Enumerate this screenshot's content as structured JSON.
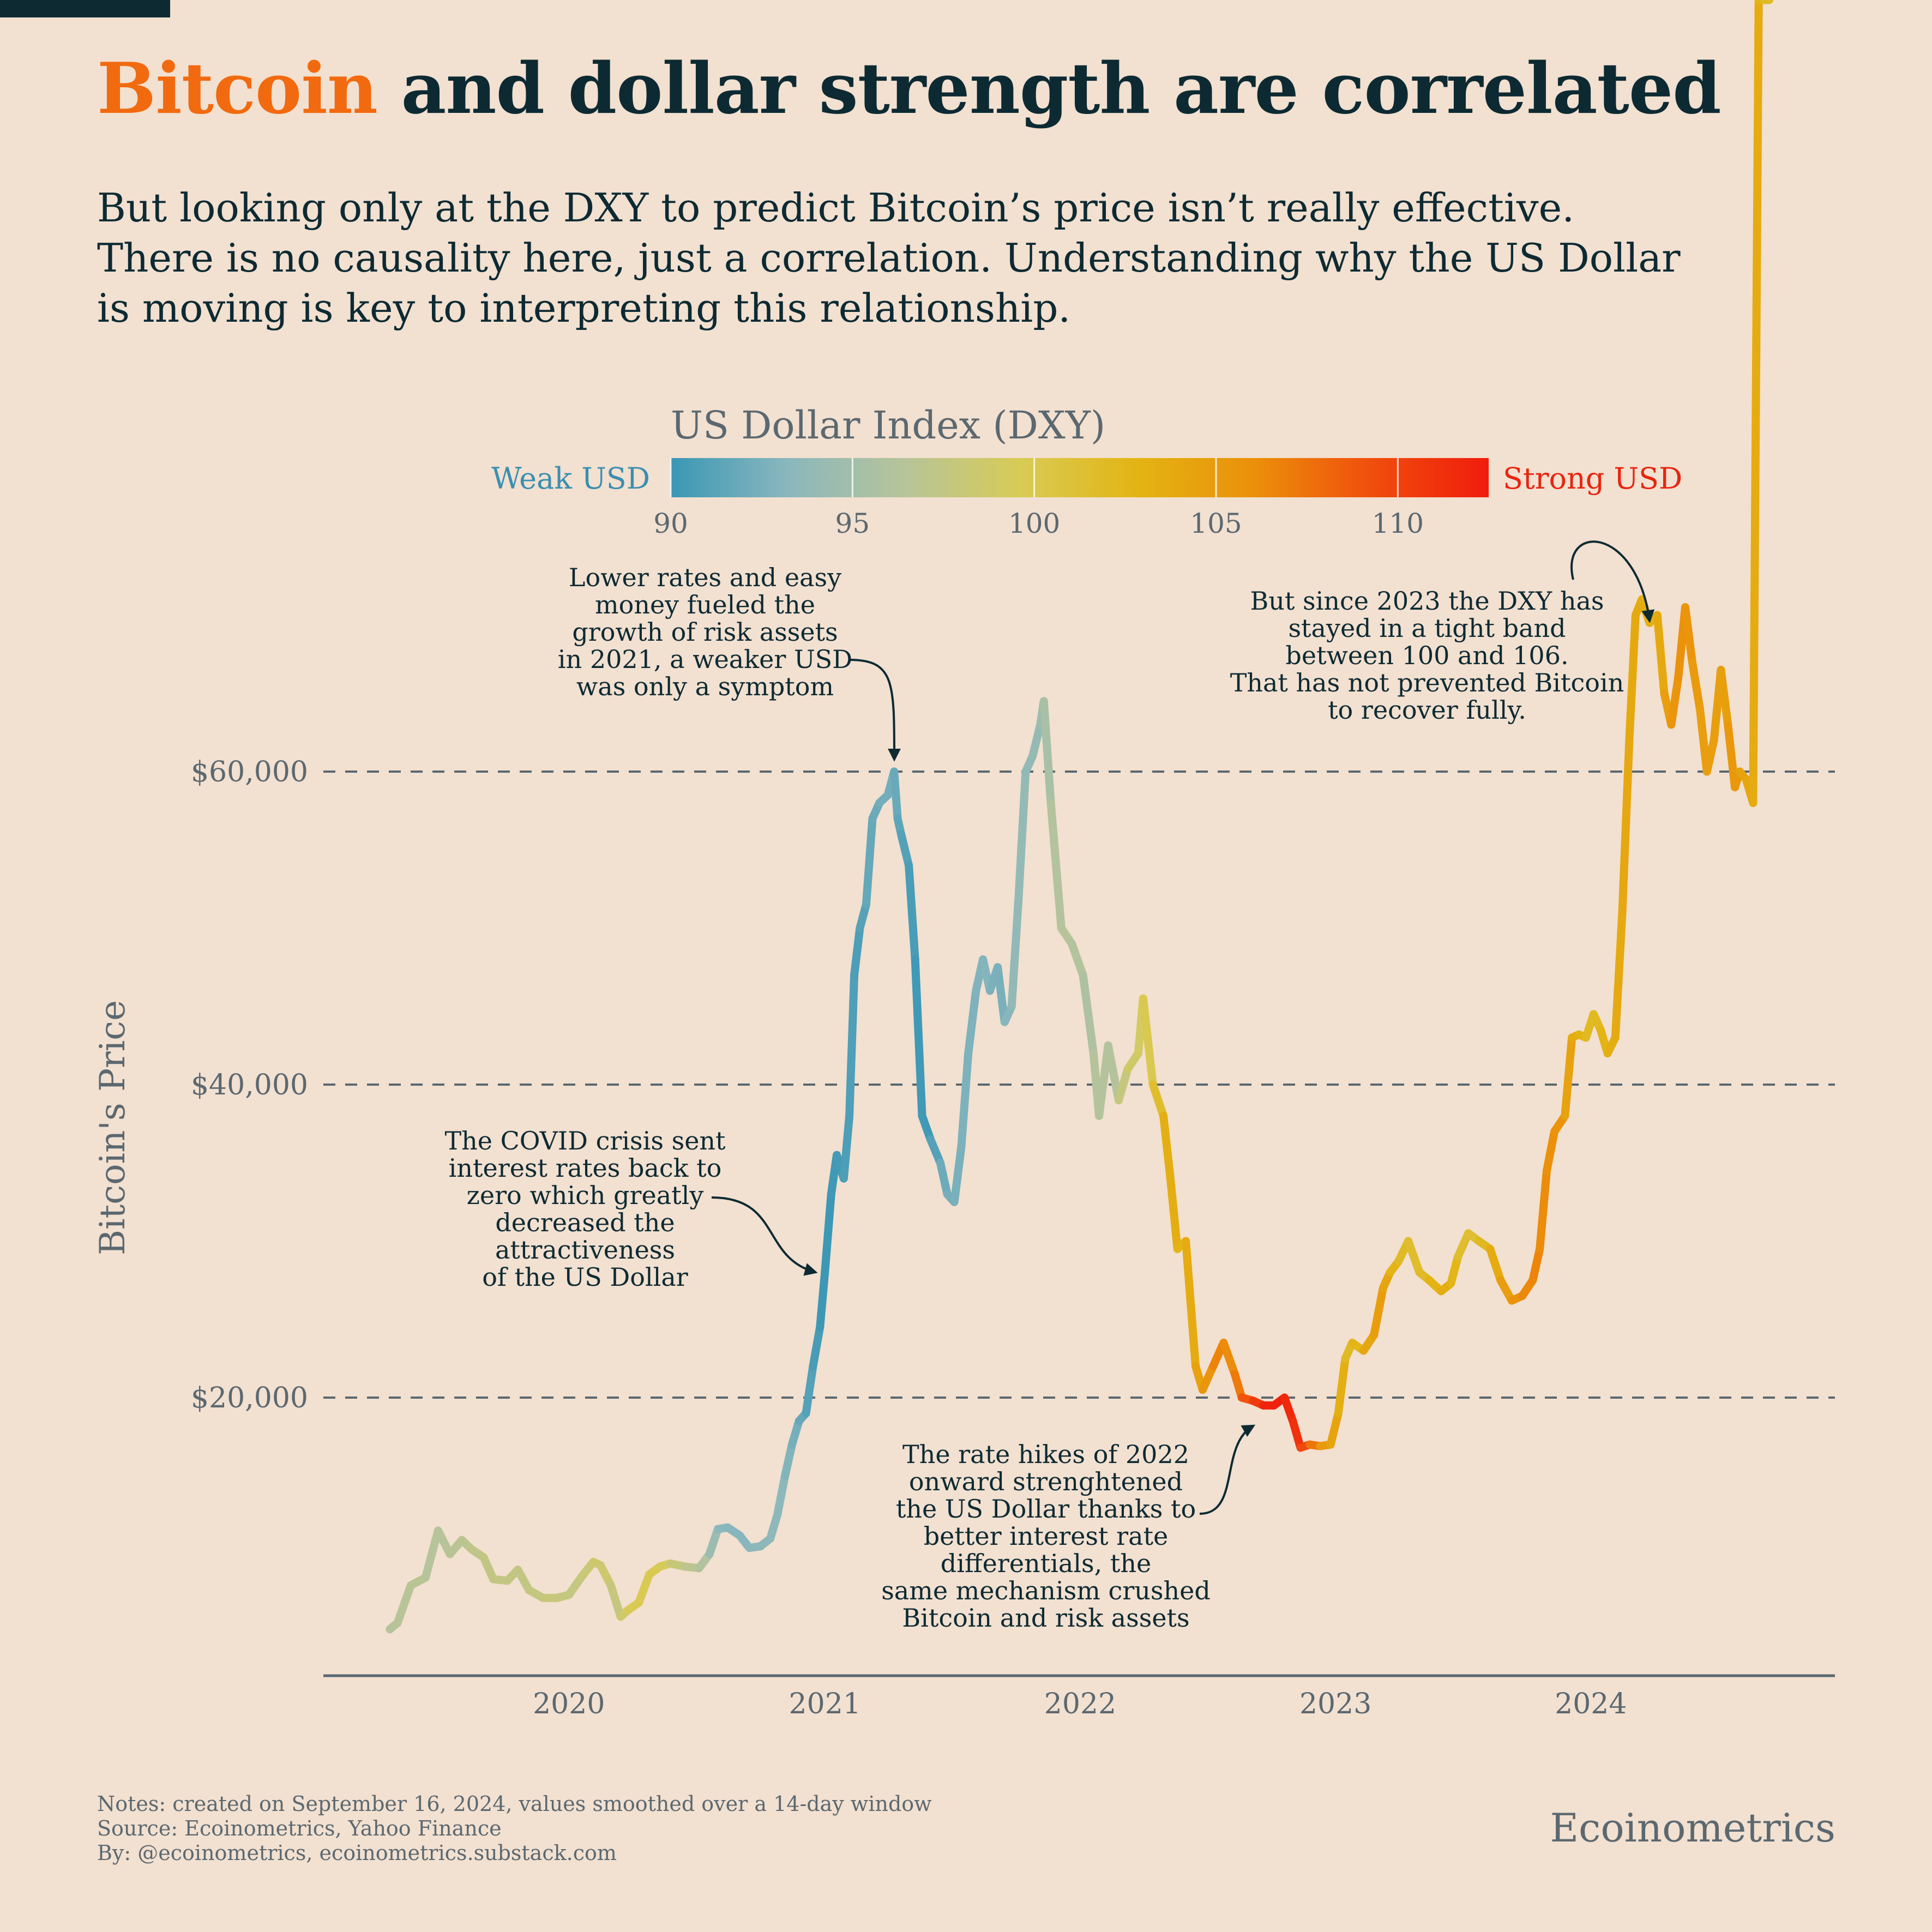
{
  "title": {
    "accent": "Bitcoin",
    "rest": "and dollar strength are correlated"
  },
  "subtitle": [
    "But looking only at the DXY to predict Bitcoin’s price isn’t really effective.",
    "There is no causality here, just a correlation. Understanding why the US Dollar",
    "is moving is key to interpreting this relationship."
  ],
  "colorbar": {
    "title": "US Dollar Index (DXY)",
    "low_label": "Weak USD",
    "high_label": "Strong USD",
    "ticks": [
      "90",
      "95",
      "100",
      "105",
      "110"
    ],
    "range": [
      90,
      112.5
    ],
    "colors": [
      "#3a97b5",
      "#8ab7bd",
      "#b7c49a",
      "#d8cb55",
      "#e3b413",
      "#eb8f0a",
      "#f04e0d",
      "#f01c0c"
    ],
    "low_color": "#3a8fb0",
    "high_color": "#e8250f"
  },
  "annotations": {
    "covid": [
      "The COVID crisis sent",
      "interest rates back to",
      "zero which greatly",
      "decreased the",
      "attractiveness",
      "of the US Dollar"
    ],
    "rates2021": [
      "Lower rates and easy",
      "money fueled the",
      "growth of risk assets",
      "in 2021, a weaker USD",
      "was only a symptom"
    ],
    "hikes": [
      "The rate hikes of 2022",
      "onward strenghtened",
      "the US Dollar thanks to",
      "better interest rate",
      "differentials, the",
      "same mechanism crushed",
      "Bitcoin and risk assets"
    ],
    "since2023": [
      "But since 2023 the DXY has",
      "stayed in a tight band",
      "between 100 and 106.",
      "That has not prevented Bitcoin",
      "to recover fully."
    ]
  },
  "notes": [
    "Notes: created on September 16, 2024, values smoothed over a 14-day window",
    "Source: Ecoinometrics, Yahoo Finance",
    "By: @ecoinometrics, ecoinometrics.substack.com"
  ],
  "brand": "Ecoinometrics",
  "chart_data": {
    "type": "line",
    "title": "",
    "xlabel": "",
    "ylabel": "Bitcoin's Price",
    "x_tick_labels": [
      "2020",
      "2021",
      "2022",
      "2023",
      "2024"
    ],
    "y_tick_labels": [
      "$20,000",
      "$40,000",
      "$60,000"
    ],
    "y_ticks": [
      20000,
      40000,
      60000
    ],
    "xlim": [
      "2019-01-15",
      "2024-12-15"
    ],
    "ylim": [
      2000,
      82000
    ],
    "grid": "horizontal dashed at y ticks",
    "color_variable": "US Dollar Index (DXY)",
    "series": [
      {
        "x": [
          "2019-04-20",
          "2019-05-01",
          "2019-05-20",
          "2019-06-10",
          "2019-06-28",
          "2019-07-15",
          "2019-08-01",
          "2019-08-15",
          "2019-09-01",
          "2019-09-15",
          "2019-10-05",
          "2019-10-20",
          "2019-11-05",
          "2019-11-25",
          "2019-12-15",
          "2020-01-01",
          "2020-01-20",
          "2020-02-05",
          "2020-02-15",
          "2020-03-01",
          "2020-03-15",
          "2020-03-25",
          "2020-04-10",
          "2020-04-25",
          "2020-05-10",
          "2020-05-25",
          "2020-06-15",
          "2020-07-05",
          "2020-07-20",
          "2020-08-01",
          "2020-08-15",
          "2020-09-01",
          "2020-09-15",
          "2020-10-01",
          "2020-10-15",
          "2020-10-25",
          "2020-11-05",
          "2020-11-15",
          "2020-11-25",
          "2020-12-05",
          "2020-12-15",
          "2020-12-25",
          "2021-01-01",
          "2021-01-10",
          "2021-01-18",
          "2021-01-28",
          "2021-02-05",
          "2021-02-12",
          "2021-02-20",
          "2021-03-01",
          "2021-03-10",
          "2021-03-20",
          "2021-04-01",
          "2021-04-10",
          "2021-04-15",
          "2021-04-20",
          "2021-05-01",
          "2021-05-10",
          "2021-05-20",
          "2021-06-01",
          "2021-06-15",
          "2021-06-25",
          "2021-07-05",
          "2021-07-15",
          "2021-07-25",
          "2021-08-05",
          "2021-08-15",
          "2021-08-25",
          "2021-09-05",
          "2021-09-15",
          "2021-09-25",
          "2021-10-05",
          "2021-10-15",
          "2021-10-25",
          "2021-11-05",
          "2021-11-10",
          "2021-11-20",
          "2021-12-05",
          "2021-12-20",
          "2022-01-05",
          "2022-01-20",
          "2022-01-28",
          "2022-02-10",
          "2022-02-25",
          "2022-03-10",
          "2022-03-25",
          "2022-04-01",
          "2022-04-15",
          "2022-04-30",
          "2022-05-10",
          "2022-05-20",
          "2022-06-01",
          "2022-06-15",
          "2022-06-25",
          "2022-07-10",
          "2022-07-25",
          "2022-08-10",
          "2022-08-20",
          "2022-09-05",
          "2022-09-20",
          "2022-10-05",
          "2022-10-20",
          "2022-11-01",
          "2022-11-12",
          "2022-11-25",
          "2022-12-10",
          "2022-12-25",
          "2023-01-05",
          "2023-01-15",
          "2023-01-25",
          "2023-02-10",
          "2023-02-25",
          "2023-03-10",
          "2023-03-20",
          "2023-04-01",
          "2023-04-15",
          "2023-05-01",
          "2023-05-15",
          "2023-06-01",
          "2023-06-15",
          "2023-06-25",
          "2023-07-10",
          "2023-07-25",
          "2023-08-10",
          "2023-08-25",
          "2023-09-10",
          "2023-09-25",
          "2023-10-10",
          "2023-10-20",
          "2023-10-30",
          "2023-11-10",
          "2023-11-25",
          "2023-12-05",
          "2023-12-15",
          "2023-12-25",
          "2024-01-05",
          "2024-01-15",
          "2024-01-25",
          "2024-02-05",
          "2024-02-15",
          "2024-02-25",
          "2024-03-05",
          "2024-03-14",
          "2024-03-25",
          "2024-04-05",
          "2024-04-15",
          "2024-04-25",
          "2024-05-05",
          "2024-05-15",
          "2024-05-25",
          "2024-06-05",
          "2024-06-15",
          "2024-06-25",
          "2024-07-05",
          "2024-07-15",
          "2024-07-25",
          "2024-08-01",
          "2024-08-10",
          "2024-08-20",
          "2024-08-28",
          "2024-09-05",
          "2024-09-12"
        ],
        "btc": [
          5200,
          5600,
          8000,
          8500,
          11500,
          10000,
          10900,
          10300,
          9800,
          8400,
          8300,
          9000,
          7700,
          7200,
          7200,
          7400,
          8600,
          9500,
          9300,
          8000,
          6000,
          6400,
          6900,
          8700,
          9200,
          9400,
          9200,
          9100,
          10000,
          11600,
          11700,
          11200,
          10400,
          10500,
          11000,
          12500,
          15000,
          17000,
          18500,
          19000,
          22000,
          24500,
          28000,
          33000,
          35500,
          34000,
          38000,
          47000,
          50000,
          51500,
          57000,
          58000,
          58500,
          60000,
          57000,
          56000,
          54000,
          48000,
          38000,
          36500,
          35000,
          33000,
          32500,
          36000,
          42000,
          46000,
          48000,
          46000,
          47500,
          44000,
          45000,
          52000,
          60000,
          61000,
          63000,
          64500,
          58000,
          50000,
          49000,
          47000,
          42000,
          38000,
          42500,
          39000,
          41000,
          42000,
          45500,
          40000,
          38000,
          34000,
          29500,
          30000,
          22000,
          20500,
          22000,
          23500,
          21500,
          20000,
          19800,
          19500,
          19500,
          20000,
          18500,
          16800,
          17000,
          16900,
          17000,
          19000,
          22500,
          23500,
          23000,
          24000,
          27000,
          28000,
          28700,
          30000,
          28000,
          27500,
          26800,
          27300,
          29000,
          30500,
          30000,
          29500,
          27500,
          26200,
          26500,
          27500,
          29500,
          34500,
          37000,
          38000,
          43000,
          43200,
          43000,
          44500,
          43500,
          42000,
          43000,
          51000,
          62000,
          70000,
          71000,
          69500,
          70000,
          65000,
          63000,
          66000,
          70500,
          67000,
          64000,
          60000,
          62000,
          66500,
          63000,
          59000,
          60000,
          59500,
          58000
        ],
        "dxy": [
          96.2,
          96.4,
          96.7,
          96.6,
          96.3,
          96.5,
          96.8,
          97.1,
          97.3,
          97.5,
          97.6,
          97.4,
          97.4,
          97.9,
          98.0,
          97.5,
          97.7,
          98.4,
          98.8,
          98.0,
          97.5,
          99.5,
          99.8,
          99.7,
          100.1,
          98.8,
          97.2,
          96.8,
          95.4,
          93.5,
          93.2,
          93.0,
          93.2,
          93.5,
          93.4,
          93.6,
          93.2,
          92.6,
          92.2,
          91.3,
          90.8,
          90.3,
          90.0,
          90.2,
          90.3,
          90.6,
          90.9,
          90.7,
          90.8,
          91.5,
          91.9,
          92.0,
          92.6,
          92.1,
          91.7,
          91.2,
          90.9,
          90.3,
          90.2,
          90.3,
          91.8,
          92.3,
          92.5,
          92.5,
          92.9,
          92.6,
          93.1,
          92.9,
          92.4,
          92.7,
          93.5,
          94.0,
          93.8,
          93.8,
          94.2,
          94.8,
          95.9,
          96.4,
          96.4,
          95.9,
          95.7,
          96.7,
          95.8,
          96.6,
          98.9,
          98.5,
          99.6,
          100.2,
          103.1,
          103.5,
          103.2,
          102.5,
          104.8,
          104.3,
          106.7,
          106.5,
          105.9,
          108.3,
          109.7,
          111.5,
          112.5,
          112.0,
          111.4,
          110.9,
          108.4,
          106.3,
          104.1,
          104.2,
          102.3,
          101.7,
          103.5,
          104.6,
          105.1,
          103.3,
          102.3,
          101.6,
          101.5,
          102.3,
          103.5,
          103.4,
          102.1,
          101.0,
          101.6,
          102.9,
          104.3,
          105.3,
          106.2,
          106.5,
          106.6,
          105.8,
          106.1,
          105.4,
          103.4,
          103.5,
          102.4,
          101.9,
          102.5,
          103.3,
          103.3,
          104.2,
          103.8,
          103.8,
          103.9,
          102.8,
          103.4,
          104.3,
          105.2,
          105.9,
          105.8,
          105.3,
          105.0,
          104.6,
          104.9,
          104.5,
          104.9,
          105.7,
          104.9,
          104.0,
          104.2,
          103.1,
          102.3,
          101.5,
          101.2,
          101.2,
          101.4
        ]
      }
    ]
  }
}
